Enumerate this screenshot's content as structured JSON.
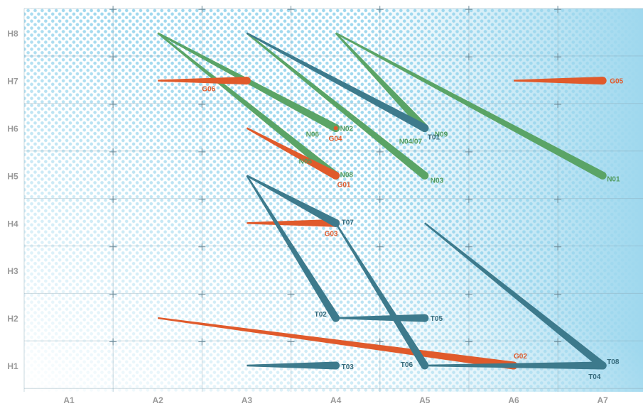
{
  "chart_data": {
    "type": "diagram",
    "x_axis": [
      "A1",
      "A2",
      "A3",
      "A4",
      "A5",
      "A6",
      "A7"
    ],
    "y_axis": [
      "H1",
      "H2",
      "H3",
      "H4",
      "H5",
      "H6",
      "H7",
      "H8"
    ],
    "colors": {
      "orange": "#e05a2b",
      "green": "#5aa466",
      "teal": "#3d7a8c",
      "background": "#9fd8ee",
      "grid": "#8aa9b8"
    },
    "paths": [
      {
        "label": "N01",
        "color": "green",
        "from": [
          4.0,
          8.0
        ],
        "to": [
          7.0,
          5.0
        ]
      },
      {
        "label": "N02",
        "color": "green",
        "from": [
          2.0,
          8.0
        ],
        "to": [
          4.0,
          6.0
        ]
      },
      {
        "label": "N03",
        "color": "green",
        "from": [
          3.0,
          8.0
        ],
        "to": [
          5.0,
          5.0
        ]
      },
      {
        "label": "N04/07",
        "color": "green",
        "from": [
          4.0,
          8.0
        ],
        "to": [
          5.0,
          6.0
        ]
      },
      {
        "label": "N05",
        "color": "green",
        "from": [
          3.0,
          7.0
        ],
        "to": [
          4.0,
          6.0
        ]
      },
      {
        "label": "N06",
        "color": "green",
        "from": [
          2.0,
          8.0
        ],
        "to": [
          4.0,
          6.0
        ]
      },
      {
        "label": "N08",
        "color": "green",
        "from": [
          2.0,
          8.0
        ],
        "to": [
          4.0,
          5.0
        ]
      },
      {
        "label": "N09",
        "color": "green",
        "from": [
          4.0,
          7.0
        ],
        "to": [
          5.0,
          6.0
        ]
      },
      {
        "label": "T01",
        "color": "teal",
        "from": [
          3.0,
          8.0
        ],
        "to": [
          5.0,
          6.0
        ]
      },
      {
        "label": "G01",
        "color": "orange",
        "from": [
          3.0,
          6.0
        ],
        "to": [
          4.0,
          5.0
        ]
      },
      {
        "label": "G02",
        "color": "orange",
        "from": [
          2.0,
          2.0
        ],
        "to": [
          6.0,
          1.0
        ]
      },
      {
        "label": "G03",
        "color": "orange",
        "from": [
          3.0,
          4.0
        ],
        "to": [
          4.0,
          4.0
        ]
      },
      {
        "label": "G04",
        "color": "orange",
        "from": [
          4.0,
          6.0
        ],
        "to": [
          4.0,
          6.0
        ]
      },
      {
        "label": "G05",
        "color": "orange",
        "from": [
          6.0,
          7.0
        ],
        "to": [
          7.0,
          7.0
        ]
      },
      {
        "label": "G06",
        "color": "orange",
        "from": [
          2.0,
          7.0
        ],
        "to": [
          3.0,
          7.0
        ]
      },
      {
        "label": "T02",
        "color": "teal",
        "from": [
          3.0,
          5.0
        ],
        "to": [
          4.0,
          2.0
        ]
      },
      {
        "label": "T03",
        "color": "teal",
        "from": [
          3.0,
          1.0
        ],
        "to": [
          4.0,
          1.0
        ]
      },
      {
        "label": "T04",
        "color": "teal",
        "from": [
          5.0,
          1.0
        ],
        "to": [
          7.0,
          1.0
        ]
      },
      {
        "label": "T05",
        "color": "teal",
        "from": [
          4.0,
          2.0
        ],
        "to": [
          5.0,
          2.0
        ]
      },
      {
        "label": "T06",
        "color": "teal",
        "from": [
          4.0,
          4.0
        ],
        "to": [
          5.0,
          1.0
        ]
      },
      {
        "label": "T07",
        "color": "teal",
        "from": [
          3.0,
          5.0
        ],
        "to": [
          4.0,
          4.0
        ]
      },
      {
        "label": "T08",
        "color": "teal",
        "from": [
          5.0,
          4.0
        ],
        "to": [
          7.0,
          1.0
        ]
      }
    ]
  }
}
